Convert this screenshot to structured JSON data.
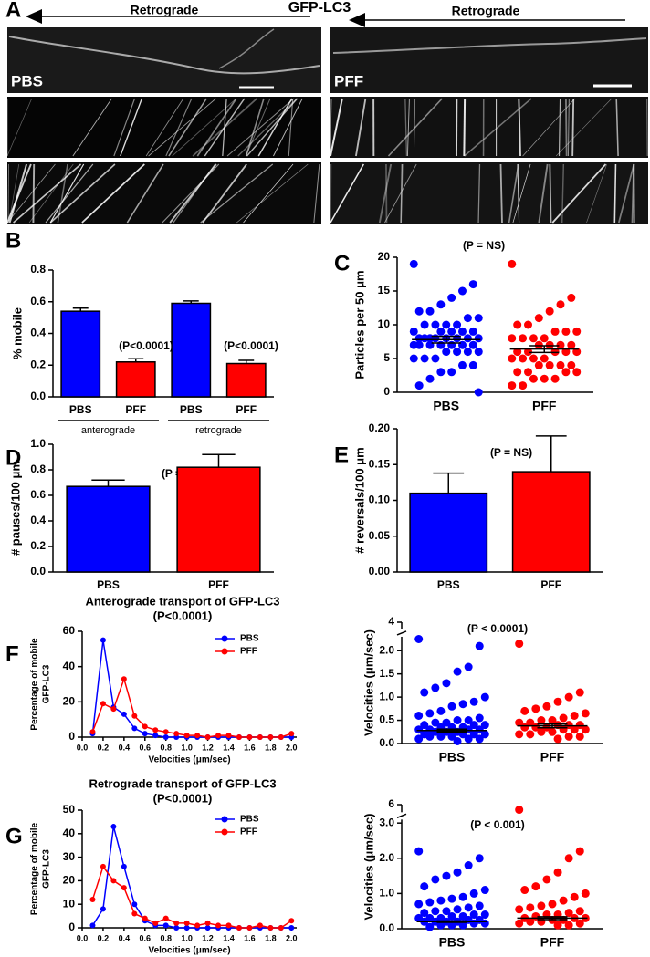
{
  "panel_a": {
    "label": "A",
    "arrow_left": "Retrograde",
    "title": "GFP-LC3",
    "arrow_right": "Retrograde",
    "left_label": "PBS",
    "right_label": "PFF"
  },
  "chart_data": [
    {
      "type": "bar",
      "panel": "B",
      "ylabel": "% mobile",
      "categories": [
        "PBS",
        "PFF",
        "PBS",
        "PFF"
      ],
      "values": [
        0.54,
        0.22,
        0.59,
        0.21
      ],
      "errors": [
        0.02,
        0.02,
        0.015,
        0.02
      ],
      "colors": [
        "#0000ff",
        "#ff0000",
        "#0000ff",
        "#ff0000"
      ],
      "ylim": [
        0,
        0.8
      ],
      "yticks": [
        {
          "value": 0,
          "label": "0.0"
        },
        0.2,
        0.4,
        0.6,
        0.8
      ],
      "annotations": [
        "(P<0.0001)",
        "(P<0.0001)"
      ],
      "group_labels": [
        "anterograde",
        "retrograde"
      ]
    },
    {
      "type": "strip",
      "panel": "C",
      "ylabel": "Particles per 50 μm",
      "ylim": [
        0,
        20
      ],
      "yticks": [
        0,
        5,
        10,
        15,
        20
      ],
      "annotations": [
        "(P = NS)"
      ],
      "series": [
        {
          "name": "PBS",
          "color": "#0000ff",
          "mean": 7.8,
          "sem": 0.5,
          "values": [
            19,
            16,
            15,
            14,
            13,
            12,
            12,
            11,
            11,
            10,
            10,
            10,
            10,
            9,
            9,
            9,
            9,
            9,
            8,
            8,
            8,
            8,
            8,
            8,
            8,
            8,
            7,
            7,
            7,
            7,
            7,
            7,
            7,
            6,
            6,
            6,
            6,
            5,
            5,
            5,
            4,
            4,
            3,
            3,
            2,
            1,
            0
          ]
        },
        {
          "name": "PFF",
          "color": "#ff0000",
          "mean": 6.4,
          "sem": 0.5,
          "values": [
            19,
            14,
            13,
            12,
            11,
            10,
            10,
            9,
            9,
            9,
            8,
            8,
            8,
            8,
            7,
            7,
            7,
            7,
            6,
            6,
            6,
            6,
            6,
            5,
            5,
            5,
            5,
            4,
            4,
            4,
            4,
            3,
            3,
            3,
            3,
            2,
            2,
            2,
            1,
            1
          ]
        }
      ]
    },
    {
      "type": "bar",
      "panel": "D",
      "ylabel": "# pauses/100 μm",
      "categories": [
        "PBS",
        "PFF"
      ],
      "values": [
        0.67,
        0.82
      ],
      "errors": [
        0.05,
        0.1
      ],
      "colors": [
        "#0000ff",
        "#ff0000"
      ],
      "ylim": [
        0,
        1.0
      ],
      "yticks": [
        {
          "value": 0,
          "label": "0.0"
        },
        0.2,
        0.4,
        0.6,
        0.8,
        {
          "value": 1,
          "label": "1.0"
        }
      ],
      "annotations": [
        "(P = NS)"
      ]
    },
    {
      "type": "bar",
      "panel": "E",
      "ylabel": "# reversals/100 μm",
      "categories": [
        "PBS",
        "PFF"
      ],
      "values": [
        0.11,
        0.14
      ],
      "errors": [
        0.028,
        0.05
      ],
      "colors": [
        "#0000ff",
        "#ff0000"
      ],
      "ylim": [
        0,
        0.2
      ],
      "yticks": [
        {
          "value": 0,
          "label": "0.00"
        },
        0.05,
        {
          "value": 0.1,
          "label": "0.10"
        },
        0.15,
        {
          "value": 0.2,
          "label": "0.20"
        }
      ],
      "annotations": [
        "(P = NS)"
      ]
    },
    {
      "type": "line",
      "panel": "F",
      "title": "Anterograde transport of GFP-LC3",
      "subtitle": "(P<0.0001)",
      "xlabel": "Velocities (μm/sec)",
      "ylabel": [
        "Percentage of mobile",
        "GFP-LC3"
      ],
      "x": [
        0.1,
        0.2,
        0.3,
        0.4,
        0.5,
        0.6,
        0.7,
        0.8,
        0.9,
        1.0,
        1.1,
        1.2,
        1.3,
        1.4,
        1.5,
        1.6,
        1.7,
        1.8,
        1.9,
        2.0
      ],
      "xlim": [
        0,
        2.05
      ],
      "xticks": [
        {
          "value": 0,
          "label": "0.0"
        },
        0.2,
        0.4,
        0.6,
        0.8,
        {
          "value": 1,
          "label": "1.0"
        },
        1.2,
        1.4,
        1.6,
        1.8,
        {
          "value": 2,
          "label": "2.0"
        }
      ],
      "ylim": [
        0,
        60
      ],
      "yticks": [
        0,
        20,
        40,
        60
      ],
      "series": [
        {
          "name": "PBS",
          "color": "#0000ff",
          "values": [
            2,
            55,
            17,
            13,
            5,
            2,
            1,
            0,
            0,
            0,
            0,
            0,
            0,
            0,
            0,
            0,
            0,
            0,
            0,
            0
          ]
        },
        {
          "name": "PFF",
          "color": "#ff0000",
          "values": [
            3,
            19,
            16,
            33,
            12,
            6,
            4,
            3,
            2,
            1,
            1,
            0,
            1,
            1,
            0,
            0,
            0,
            0,
            0,
            2
          ]
        }
      ]
    },
    {
      "type": "strip",
      "ylabel": "Velocities (μm/sec)",
      "ylim": [
        0,
        4
      ],
      "ybreak": [
        2.3,
        3.95
      ],
      "yticks": [
        {
          "value": 0,
          "label": "0.0"
        },
        0.5,
        {
          "value": 1,
          "label": "1.0"
        },
        1.5,
        {
          "value": 2,
          "label": "2.0"
        },
        4
      ],
      "annotations": [
        "(P < 0.0001)"
      ],
      "series": [
        {
          "name": "PBS",
          "color": "#0000ff",
          "mean": 0.28,
          "sem": 0.03,
          "values": [
            2.25,
            2.1,
            1.65,
            1.55,
            1.3,
            1.2,
            1.1,
            1.0,
            0.9,
            0.85,
            0.8,
            0.7,
            0.65,
            0.6,
            0.55,
            0.5,
            0.5,
            0.45,
            0.45,
            0.4,
            0.4,
            0.4,
            0.35,
            0.35,
            0.35,
            0.3,
            0.3,
            0.3,
            0.3,
            0.25,
            0.25,
            0.25,
            0.2,
            0.2,
            0.2,
            0.2,
            0.15,
            0.15,
            0.15,
            0.1,
            0.1,
            0.1,
            0.05
          ]
        },
        {
          "name": "PFF",
          "color": "#ff0000",
          "mean": 0.38,
          "sem": 0.04,
          "values": [
            2.15,
            1.1,
            1.0,
            0.9,
            0.8,
            0.75,
            0.7,
            0.65,
            0.6,
            0.55,
            0.5,
            0.5,
            0.45,
            0.45,
            0.4,
            0.4,
            0.4,
            0.35,
            0.35,
            0.35,
            0.3,
            0.3,
            0.3,
            0.25,
            0.25,
            0.2,
            0.2,
            0.15,
            0.15,
            0.1
          ]
        }
      ]
    },
    {
      "type": "line",
      "panel": "G",
      "title": "Retrograde transport of GFP-LC3",
      "subtitle": "(P<0.0001)",
      "xlabel": "Velocities (μm/sec)",
      "ylabel": [
        "Percentage of mobile",
        "GFP-LC3"
      ],
      "x": [
        0.1,
        0.2,
        0.3,
        0.4,
        0.5,
        0.6,
        0.7,
        0.8,
        0.9,
        1.0,
        1.1,
        1.2,
        1.3,
        1.4,
        1.5,
        1.6,
        1.7,
        1.8,
        1.9,
        2.0
      ],
      "xlim": [
        0,
        2.05
      ],
      "xticks": [
        {
          "value": 0,
          "label": "0.0"
        },
        0.2,
        0.4,
        0.6,
        0.8,
        {
          "value": 1,
          "label": "1.0"
        },
        1.2,
        1.4,
        1.6,
        1.8,
        {
          "value": 2,
          "label": "2.0"
        }
      ],
      "ylim": [
        0,
        50
      ],
      "yticks": [
        0,
        10,
        20,
        30,
        40,
        50
      ],
      "series": [
        {
          "name": "PBS",
          "color": "#0000ff",
          "values": [
            1,
            8,
            43,
            26,
            10,
            3,
            1,
            1,
            0,
            0,
            0,
            0,
            0,
            0,
            0,
            0,
            0,
            0,
            0,
            0
          ]
        },
        {
          "name": "PFF",
          "color": "#ff0000",
          "values": [
            12,
            26,
            20,
            17,
            6,
            4,
            2,
            4,
            2,
            2,
            1,
            2,
            1,
            1,
            0,
            0,
            1,
            0,
            0,
            3
          ]
        }
      ]
    },
    {
      "type": "strip",
      "ylabel": "Velocities (μm/sec)",
      "ylim": [
        0,
        6
      ],
      "ybreak": [
        3.1,
        5.4
      ],
      "yticks": [
        {
          "value": 0,
          "label": "0.0"
        },
        {
          "value": 1,
          "label": "1.0"
        },
        {
          "value": 2,
          "label": "2.0"
        },
        {
          "value": 3,
          "label": "3.0"
        },
        6
      ],
      "annotations": [
        "(P < 0.001)"
      ],
      "series": [
        {
          "name": "PBS",
          "color": "#0000ff",
          "mean": 0.2,
          "sem": 0.02,
          "values": [
            2.2,
            2.0,
            1.8,
            1.6,
            1.5,
            1.4,
            1.2,
            1.1,
            1.0,
            0.9,
            0.85,
            0.8,
            0.75,
            0.7,
            0.65,
            0.6,
            0.55,
            0.5,
            0.5,
            0.45,
            0.4,
            0.4,
            0.35,
            0.35,
            0.3,
            0.3,
            0.3,
            0.25,
            0.25,
            0.2,
            0.2,
            0.2,
            0.2,
            0.15,
            0.15,
            0.1,
            0.1,
            0.1,
            0.05
          ]
        },
        {
          "name": "PFF",
          "color": "#ff0000",
          "mean": 0.3,
          "sem": 0.04,
          "values": [
            5.6,
            2.2,
            2.0,
            1.6,
            1.4,
            1.2,
            1.1,
            1.0,
            0.9,
            0.8,
            0.7,
            0.65,
            0.6,
            0.55,
            0.5,
            0.45,
            0.4,
            0.4,
            0.35,
            0.3,
            0.3,
            0.3,
            0.25,
            0.25,
            0.2,
            0.2,
            0.15,
            0.15,
            0.1,
            0.1
          ]
        }
      ]
    }
  ]
}
